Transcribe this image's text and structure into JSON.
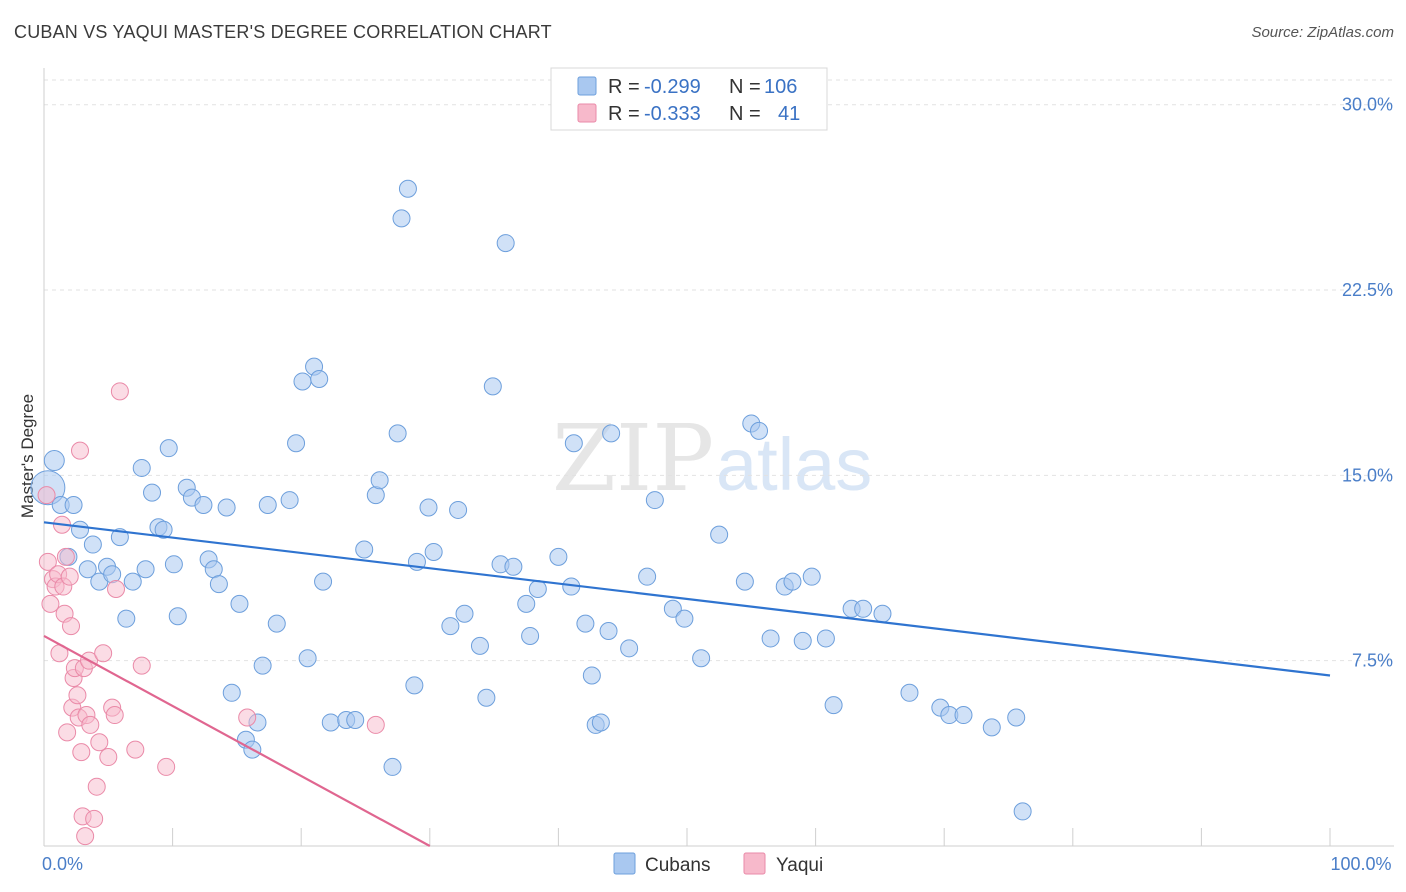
{
  "header": {
    "title": "CUBAN VS YAQUI MASTER'S DEGREE CORRELATION CHART",
    "source": "Source: ZipAtlas.com"
  },
  "watermark": {
    "zip": "ZIP",
    "atlas": "atlas"
  },
  "legend": {
    "rows": [
      {
        "r_label": "R =",
        "r_value": "-0.299",
        "n_label": "N =",
        "n_value": "106",
        "color": "#a9c8f0"
      },
      {
        "r_label": "R =",
        "r_value": "-0.333",
        "n_label": "N =",
        "n_value": "41",
        "color": "#f7b9cb"
      }
    ]
  },
  "colors": {
    "cubans_fill": "#a9c8f0",
    "cubans_stroke": "#6d9fdc",
    "cubans_line": "#2f74d0",
    "yaqui_fill": "#f7b9cb",
    "yaqui_stroke": "#ea8aa8",
    "yaqui_line": "#e06690",
    "label_blue": "#4a7ec8"
  },
  "chart_data": {
    "type": "scatter",
    "title": "CUBAN VS YAQUI MASTER'S DEGREE CORRELATION CHART",
    "xlabel": "",
    "ylabel": "Master's Degree",
    "xlim": [
      0,
      100
    ],
    "ylim": [
      0,
      31
    ],
    "y_ticks": [
      {
        "value": 7.5,
        "label": "7.5%"
      },
      {
        "value": 15.0,
        "label": "15.0%"
      },
      {
        "value": 22.5,
        "label": "22.5%"
      },
      {
        "value": 30.0,
        "label": "30.0%"
      }
    ],
    "x_tick_labels": [
      {
        "value": 0,
        "label": "0.0%"
      },
      {
        "value": 100,
        "label": "100.0%"
      }
    ],
    "x_minor_ticks": [
      0,
      10,
      20,
      30,
      40,
      50,
      60,
      70,
      80,
      90,
      100
    ],
    "grid": "horizontal dashed",
    "legend_position": "top-center",
    "series": [
      {
        "name": "Cubans",
        "r": -0.299,
        "n": 106,
        "trend": {
          "x": [
            0,
            100
          ],
          "y": [
            13.1,
            6.9
          ]
        },
        "points": [
          [
            0.3,
            14.5
          ],
          [
            0.8,
            15.6
          ],
          [
            1.3,
            13.8
          ],
          [
            1.9,
            11.7
          ],
          [
            2.3,
            13.8
          ],
          [
            2.8,
            12.8
          ],
          [
            3.4,
            11.2
          ],
          [
            3.8,
            12.2
          ],
          [
            4.3,
            10.7
          ],
          [
            4.9,
            11.3
          ],
          [
            5.3,
            11.0
          ],
          [
            5.9,
            12.5
          ],
          [
            6.4,
            9.2
          ],
          [
            6.9,
            10.7
          ],
          [
            7.6,
            15.3
          ],
          [
            7.9,
            11.2
          ],
          [
            8.4,
            14.3
          ],
          [
            8.9,
            12.9
          ],
          [
            9.3,
            12.8
          ],
          [
            9.7,
            16.1
          ],
          [
            10.1,
            11.4
          ],
          [
            10.4,
            9.3
          ],
          [
            11.1,
            14.5
          ],
          [
            11.5,
            14.1
          ],
          [
            12.4,
            13.8
          ],
          [
            12.8,
            11.6
          ],
          [
            13.2,
            11.2
          ],
          [
            13.6,
            10.6
          ],
          [
            14.2,
            13.7
          ],
          [
            14.6,
            6.2
          ],
          [
            15.2,
            9.8
          ],
          [
            15.7,
            4.3
          ],
          [
            16.2,
            3.9
          ],
          [
            16.6,
            5.0
          ],
          [
            17.0,
            7.3
          ],
          [
            17.4,
            13.8
          ],
          [
            18.1,
            9.0
          ],
          [
            19.1,
            14.0
          ],
          [
            19.6,
            16.3
          ],
          [
            20.1,
            18.8
          ],
          [
            20.5,
            7.6
          ],
          [
            21.0,
            19.4
          ],
          [
            21.4,
            18.9
          ],
          [
            21.7,
            10.7
          ],
          [
            22.3,
            5.0
          ],
          [
            23.5,
            5.1
          ],
          [
            24.2,
            5.1
          ],
          [
            24.9,
            12.0
          ],
          [
            25.8,
            14.2
          ],
          [
            26.1,
            14.8
          ],
          [
            27.1,
            3.2
          ],
          [
            27.5,
            16.7
          ],
          [
            27.8,
            25.4
          ],
          [
            28.3,
            26.6
          ],
          [
            28.8,
            6.5
          ],
          [
            29.0,
            11.5
          ],
          [
            29.9,
            13.7
          ],
          [
            30.3,
            11.9
          ],
          [
            31.6,
            8.9
          ],
          [
            32.2,
            13.6
          ],
          [
            32.7,
            9.4
          ],
          [
            33.9,
            8.1
          ],
          [
            34.4,
            6.0
          ],
          [
            34.9,
            18.6
          ],
          [
            35.5,
            11.4
          ],
          [
            35.9,
            24.4
          ],
          [
            36.5,
            11.3
          ],
          [
            37.5,
            9.8
          ],
          [
            37.8,
            8.5
          ],
          [
            38.4,
            10.4
          ],
          [
            40.0,
            11.7
          ],
          [
            41.0,
            10.5
          ],
          [
            41.2,
            16.3
          ],
          [
            42.1,
            9.0
          ],
          [
            42.6,
            6.9
          ],
          [
            42.9,
            4.9
          ],
          [
            43.3,
            5.0
          ],
          [
            43.9,
            8.7
          ],
          [
            44.1,
            16.7
          ],
          [
            45.5,
            8.0
          ],
          [
            46.9,
            10.9
          ],
          [
            47.5,
            14.0
          ],
          [
            48.9,
            9.6
          ],
          [
            49.8,
            9.2
          ],
          [
            51.1,
            7.6
          ],
          [
            52.5,
            12.6
          ],
          [
            54.5,
            10.7
          ],
          [
            55.0,
            17.1
          ],
          [
            55.6,
            16.8
          ],
          [
            56.5,
            8.4
          ],
          [
            57.6,
            10.5
          ],
          [
            58.2,
            10.7
          ],
          [
            59.0,
            8.3
          ],
          [
            59.7,
            10.9
          ],
          [
            60.8,
            8.4
          ],
          [
            61.4,
            5.7
          ],
          [
            62.8,
            9.6
          ],
          [
            63.7,
            9.6
          ],
          [
            65.2,
            9.4
          ],
          [
            67.3,
            6.2
          ],
          [
            69.7,
            5.6
          ],
          [
            70.4,
            5.3
          ],
          [
            71.5,
            5.3
          ],
          [
            73.7,
            4.8
          ],
          [
            75.6,
            5.2
          ],
          [
            76.1,
            1.4
          ]
        ]
      },
      {
        "name": "Yaqui",
        "r": -0.333,
        "n": 41,
        "trend": {
          "x": [
            0,
            30
          ],
          "y": [
            8.5,
            0.0
          ]
        },
        "points": [
          [
            0.2,
            14.2
          ],
          [
            0.3,
            11.5
          ],
          [
            0.5,
            9.8
          ],
          [
            0.7,
            10.8
          ],
          [
            0.9,
            10.5
          ],
          [
            1.1,
            11.0
          ],
          [
            1.2,
            7.8
          ],
          [
            1.4,
            13.0
          ],
          [
            1.5,
            10.5
          ],
          [
            1.6,
            9.4
          ],
          [
            1.7,
            11.7
          ],
          [
            1.8,
            4.6
          ],
          [
            2.0,
            10.9
          ],
          [
            2.1,
            8.9
          ],
          [
            2.2,
            5.6
          ],
          [
            2.3,
            6.8
          ],
          [
            2.4,
            7.2
          ],
          [
            2.6,
            6.1
          ],
          [
            2.7,
            5.2
          ],
          [
            2.8,
            16.0
          ],
          [
            2.9,
            3.8
          ],
          [
            3.0,
            1.2
          ],
          [
            3.1,
            7.2
          ],
          [
            3.2,
            0.4
          ],
          [
            3.3,
            5.3
          ],
          [
            3.5,
            7.5
          ],
          [
            3.6,
            4.9
          ],
          [
            3.9,
            1.1
          ],
          [
            4.1,
            2.4
          ],
          [
            4.3,
            4.2
          ],
          [
            4.6,
            7.8
          ],
          [
            5.0,
            3.6
          ],
          [
            5.3,
            5.6
          ],
          [
            5.5,
            5.3
          ],
          [
            5.6,
            10.4
          ],
          [
            5.9,
            18.4
          ],
          [
            7.1,
            3.9
          ],
          [
            7.6,
            7.3
          ],
          [
            9.5,
            3.2
          ],
          [
            15.8,
            5.2
          ],
          [
            25.8,
            4.9
          ]
        ]
      }
    ]
  }
}
